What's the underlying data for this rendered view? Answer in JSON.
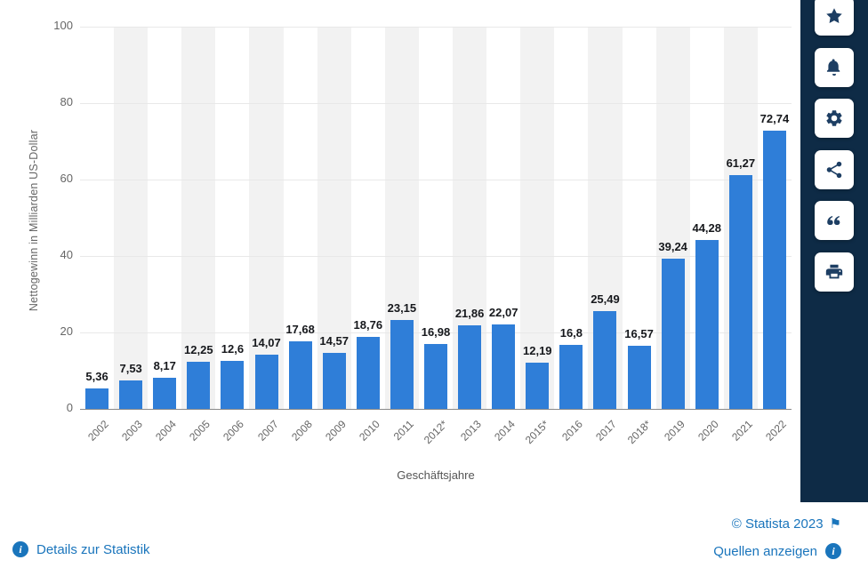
{
  "chart_data": {
    "type": "bar",
    "title": "",
    "xlabel": "Geschäftsjahre",
    "ylabel": "Nettogewinn in Milliarden US-Dollar",
    "categories": [
      "2002",
      "2003",
      "2004",
      "2005",
      "2006",
      "2007",
      "2008",
      "2009",
      "2010",
      "2011",
      "2012*",
      "2013",
      "2014",
      "2015*",
      "2016",
      "2017",
      "2018*",
      "2019",
      "2020",
      "2021",
      "2022"
    ],
    "values": [
      5.36,
      7.53,
      8.17,
      12.25,
      12.6,
      14.07,
      17.68,
      14.57,
      18.76,
      23.15,
      16.98,
      21.86,
      22.07,
      12.19,
      16.8,
      25.49,
      16.57,
      39.24,
      44.28,
      61.27,
      72.74
    ],
    "value_labels": [
      "5,36",
      "7,53",
      "8,17",
      "12,25",
      "12,6",
      "14,07",
      "17,68",
      "14,57",
      "18,76",
      "23,15",
      "16,98",
      "21,86",
      "22,07",
      "12,19",
      "16,8",
      "25,49",
      "16,57",
      "39,24",
      "44,28",
      "61,27",
      "72,74"
    ],
    "yticks": [
      0,
      20,
      40,
      60,
      80,
      100
    ],
    "ylim": [
      0,
      100
    ],
    "bar_color": "#2f7ed8",
    "stripe_color": "#f2f2f2",
    "grid": true,
    "legend": false
  },
  "toolbar": {
    "background_color": "#0e2b46",
    "icon_color": "#1d3e63",
    "icons": [
      "star-icon",
      "bell-icon",
      "gear-icon",
      "share-icon",
      "quote-icon",
      "print-icon"
    ]
  },
  "footer": {
    "details_label": "Details zur Statistik",
    "copyright_label": "© Statista 2023",
    "flag_icon": "⚑",
    "sources_label": "Quellen anzeigen",
    "link_color": "#1a75bc"
  }
}
